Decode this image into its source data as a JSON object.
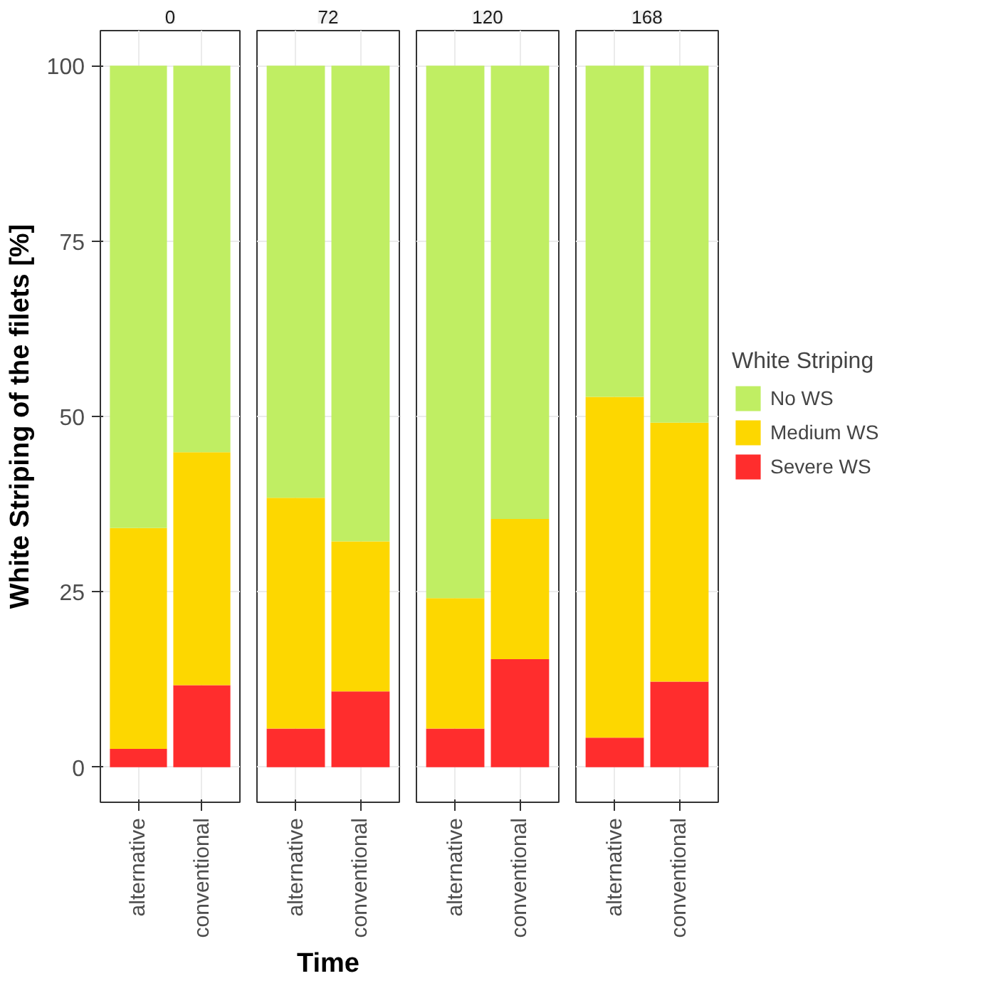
{
  "chart_data": [
    {
      "type": "bar",
      "title": "0",
      "categories": [
        "alternative",
        "conventional"
      ],
      "stacked": true,
      "ylabel": "White Striping of the filets [%]",
      "ylim": [
        -5,
        105
      ],
      "yticks": [
        0,
        25,
        50,
        75,
        100
      ],
      "grid": true,
      "series": [
        {
          "color": "#ff2d2d",
          "values": [
            2.6,
            11.7
          ]
        },
        {
          "color": "#fdd700",
          "values": [
            31.5,
            33.2
          ]
        },
        {
          "color": "#c0ee63",
          "values": [
            65.9,
            55.1
          ]
        }
      ]
    },
    {
      "type": "bar",
      "title": "72",
      "xlabel": "Time",
      "categories": [
        "alternative",
        "conventional"
      ],
      "stacked": true,
      "ylim": [
        -5,
        105
      ],
      "yticks": [
        0,
        25,
        50,
        75,
        100
      ],
      "grid": true,
      "tick_labels": "x",
      "series": [
        {
          "color": "#ff2d2d",
          "values": [
            5.5,
            10.8
          ]
        },
        {
          "color": "#fdd700",
          "values": [
            32.9,
            21.4
          ]
        },
        {
          "color": "#c0ee63",
          "values": [
            61.6,
            67.8
          ]
        }
      ]
    },
    {
      "type": "bar",
      "title": "120",
      "categories": [
        "alternative",
        "conventional"
      ],
      "stacked": true,
      "ylim": [
        -5,
        105
      ],
      "yticks": [
        0,
        25,
        50,
        75,
        100
      ],
      "grid": true,
      "tick_labels": "x",
      "series": [
        {
          "color": "#ff2d2d",
          "values": [
            5.5,
            15.4
          ]
        },
        {
          "color": "#fdd700",
          "values": [
            18.6,
            20.0
          ]
        },
        {
          "color": "#c0ee63",
          "values": [
            75.9,
            64.6
          ]
        }
      ]
    },
    {
      "type": "bar",
      "title": "168",
      "categories": [
        "alternative",
        "conventional"
      ],
      "stacked": true,
      "ylim": [
        -5,
        105
      ],
      "yticks": [
        0,
        25,
        50,
        75,
        100
      ],
      "grid": true,
      "tick_labels": "x",
      "legend": "right",
      "legend_title": "White Striping",
      "series": [
        {
          "name": "Severe WS",
          "color": "#ff2d2d",
          "values": [
            4.2,
            12.2
          ]
        },
        {
          "name": "Medium WS",
          "color": "#fdd700",
          "values": [
            48.6,
            36.9
          ]
        },
        {
          "name": "No WS",
          "color": "#c0ee63",
          "values": [
            47.2,
            50.9
          ]
        }
      ]
    }
  ]
}
